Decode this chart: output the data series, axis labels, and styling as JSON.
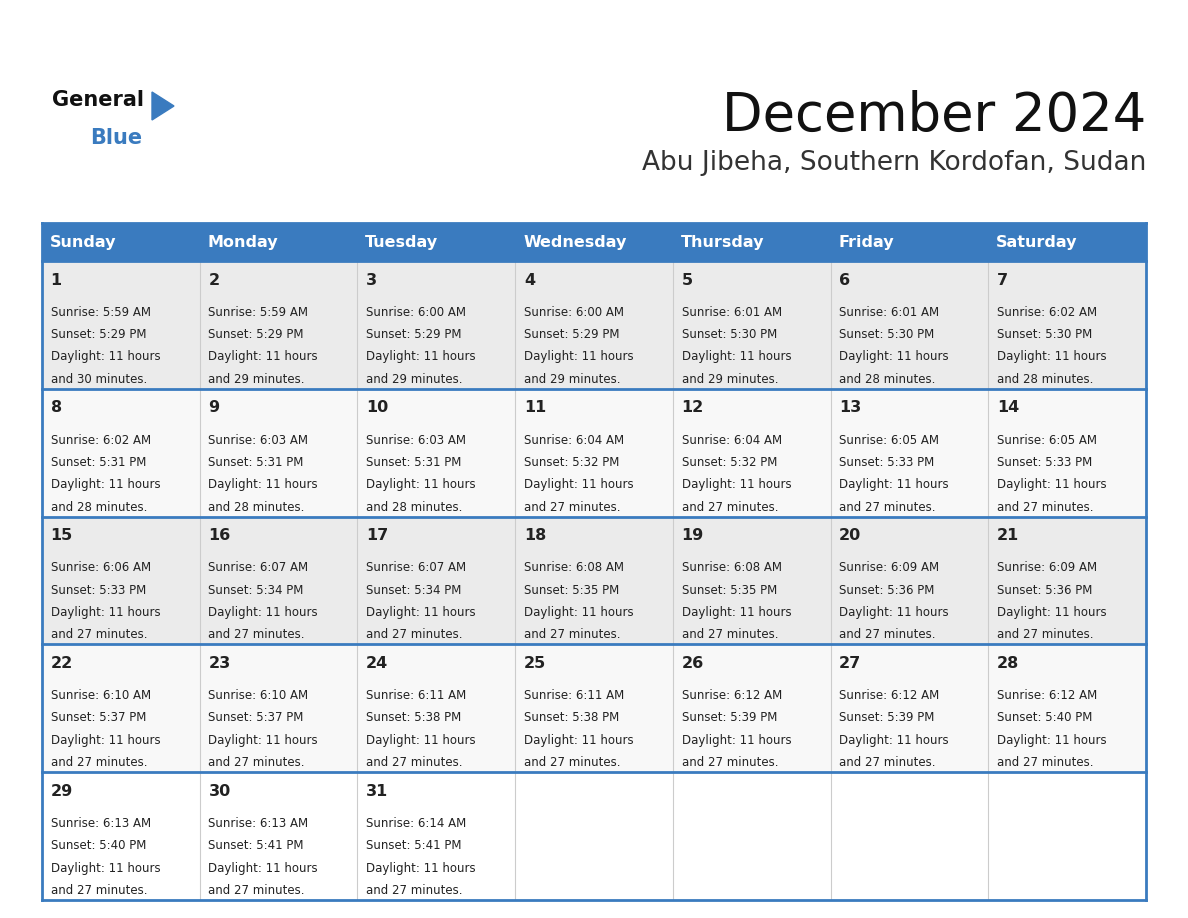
{
  "title": "December 2024",
  "subtitle": "Abu Jibeha, Southern Kordofan, Sudan",
  "header_color": "#3a7bbf",
  "header_text_color": "#ffffff",
  "day_names": [
    "Sunday",
    "Monday",
    "Tuesday",
    "Wednesday",
    "Thursday",
    "Friday",
    "Saturday"
  ],
  "odd_row_color": "#eeeeee",
  "even_row_color": "#f8f8f8",
  "last_row_color": "#ffffff",
  "border_color": "#3a7bbf",
  "sep_color": "#aaaaaa",
  "text_color": "#222222",
  "days": [
    {
      "day": 1,
      "col": 0,
      "row": 0,
      "sunrise": "5:59 AM",
      "sunset": "5:29 PM",
      "daylight_h": "11 hours",
      "daylight_m": "and 30 minutes."
    },
    {
      "day": 2,
      "col": 1,
      "row": 0,
      "sunrise": "5:59 AM",
      "sunset": "5:29 PM",
      "daylight_h": "11 hours",
      "daylight_m": "and 29 minutes."
    },
    {
      "day": 3,
      "col": 2,
      "row": 0,
      "sunrise": "6:00 AM",
      "sunset": "5:29 PM",
      "daylight_h": "11 hours",
      "daylight_m": "and 29 minutes."
    },
    {
      "day": 4,
      "col": 3,
      "row": 0,
      "sunrise": "6:00 AM",
      "sunset": "5:29 PM",
      "daylight_h": "11 hours",
      "daylight_m": "and 29 minutes."
    },
    {
      "day": 5,
      "col": 4,
      "row": 0,
      "sunrise": "6:01 AM",
      "sunset": "5:30 PM",
      "daylight_h": "11 hours",
      "daylight_m": "and 29 minutes."
    },
    {
      "day": 6,
      "col": 5,
      "row": 0,
      "sunrise": "6:01 AM",
      "sunset": "5:30 PM",
      "daylight_h": "11 hours",
      "daylight_m": "and 28 minutes."
    },
    {
      "day": 7,
      "col": 6,
      "row": 0,
      "sunrise": "6:02 AM",
      "sunset": "5:30 PM",
      "daylight_h": "11 hours",
      "daylight_m": "and 28 minutes."
    },
    {
      "day": 8,
      "col": 0,
      "row": 1,
      "sunrise": "6:02 AM",
      "sunset": "5:31 PM",
      "daylight_h": "11 hours",
      "daylight_m": "and 28 minutes."
    },
    {
      "day": 9,
      "col": 1,
      "row": 1,
      "sunrise": "6:03 AM",
      "sunset": "5:31 PM",
      "daylight_h": "11 hours",
      "daylight_m": "and 28 minutes."
    },
    {
      "day": 10,
      "col": 2,
      "row": 1,
      "sunrise": "6:03 AM",
      "sunset": "5:31 PM",
      "daylight_h": "11 hours",
      "daylight_m": "and 28 minutes."
    },
    {
      "day": 11,
      "col": 3,
      "row": 1,
      "sunrise": "6:04 AM",
      "sunset": "5:32 PM",
      "daylight_h": "11 hours",
      "daylight_m": "and 27 minutes."
    },
    {
      "day": 12,
      "col": 4,
      "row": 1,
      "sunrise": "6:04 AM",
      "sunset": "5:32 PM",
      "daylight_h": "11 hours",
      "daylight_m": "and 27 minutes."
    },
    {
      "day": 13,
      "col": 5,
      "row": 1,
      "sunrise": "6:05 AM",
      "sunset": "5:33 PM",
      "daylight_h": "11 hours",
      "daylight_m": "and 27 minutes."
    },
    {
      "day": 14,
      "col": 6,
      "row": 1,
      "sunrise": "6:05 AM",
      "sunset": "5:33 PM",
      "daylight_h": "11 hours",
      "daylight_m": "and 27 minutes."
    },
    {
      "day": 15,
      "col": 0,
      "row": 2,
      "sunrise": "6:06 AM",
      "sunset": "5:33 PM",
      "daylight_h": "11 hours",
      "daylight_m": "and 27 minutes."
    },
    {
      "day": 16,
      "col": 1,
      "row": 2,
      "sunrise": "6:07 AM",
      "sunset": "5:34 PM",
      "daylight_h": "11 hours",
      "daylight_m": "and 27 minutes."
    },
    {
      "day": 17,
      "col": 2,
      "row": 2,
      "sunrise": "6:07 AM",
      "sunset": "5:34 PM",
      "daylight_h": "11 hours",
      "daylight_m": "and 27 minutes."
    },
    {
      "day": 18,
      "col": 3,
      "row": 2,
      "sunrise": "6:08 AM",
      "sunset": "5:35 PM",
      "daylight_h": "11 hours",
      "daylight_m": "and 27 minutes."
    },
    {
      "day": 19,
      "col": 4,
      "row": 2,
      "sunrise": "6:08 AM",
      "sunset": "5:35 PM",
      "daylight_h": "11 hours",
      "daylight_m": "and 27 minutes."
    },
    {
      "day": 20,
      "col": 5,
      "row": 2,
      "sunrise": "6:09 AM",
      "sunset": "5:36 PM",
      "daylight_h": "11 hours",
      "daylight_m": "and 27 minutes."
    },
    {
      "day": 21,
      "col": 6,
      "row": 2,
      "sunrise": "6:09 AM",
      "sunset": "5:36 PM",
      "daylight_h": "11 hours",
      "daylight_m": "and 27 minutes."
    },
    {
      "day": 22,
      "col": 0,
      "row": 3,
      "sunrise": "6:10 AM",
      "sunset": "5:37 PM",
      "daylight_h": "11 hours",
      "daylight_m": "and 27 minutes."
    },
    {
      "day": 23,
      "col": 1,
      "row": 3,
      "sunrise": "6:10 AM",
      "sunset": "5:37 PM",
      "daylight_h": "11 hours",
      "daylight_m": "and 27 minutes."
    },
    {
      "day": 24,
      "col": 2,
      "row": 3,
      "sunrise": "6:11 AM",
      "sunset": "5:38 PM",
      "daylight_h": "11 hours",
      "daylight_m": "and 27 minutes."
    },
    {
      "day": 25,
      "col": 3,
      "row": 3,
      "sunrise": "6:11 AM",
      "sunset": "5:38 PM",
      "daylight_h": "11 hours",
      "daylight_m": "and 27 minutes."
    },
    {
      "day": 26,
      "col": 4,
      "row": 3,
      "sunrise": "6:12 AM",
      "sunset": "5:39 PM",
      "daylight_h": "11 hours",
      "daylight_m": "and 27 minutes."
    },
    {
      "day": 27,
      "col": 5,
      "row": 3,
      "sunrise": "6:12 AM",
      "sunset": "5:39 PM",
      "daylight_h": "11 hours",
      "daylight_m": "and 27 minutes."
    },
    {
      "day": 28,
      "col": 6,
      "row": 3,
      "sunrise": "6:12 AM",
      "sunset": "5:40 PM",
      "daylight_h": "11 hours",
      "daylight_m": "and 27 minutes."
    },
    {
      "day": 29,
      "col": 0,
      "row": 4,
      "sunrise": "6:13 AM",
      "sunset": "5:40 PM",
      "daylight_h": "11 hours",
      "daylight_m": "and 27 minutes."
    },
    {
      "day": 30,
      "col": 1,
      "row": 4,
      "sunrise": "6:13 AM",
      "sunset": "5:41 PM",
      "daylight_h": "11 hours",
      "daylight_m": "and 27 minutes."
    },
    {
      "day": 31,
      "col": 2,
      "row": 4,
      "sunrise": "6:14 AM",
      "sunset": "5:41 PM",
      "daylight_h": "11 hours",
      "daylight_m": "and 27 minutes."
    }
  ],
  "num_rows": 5,
  "logo_triangle_color": "#3a7bbf"
}
